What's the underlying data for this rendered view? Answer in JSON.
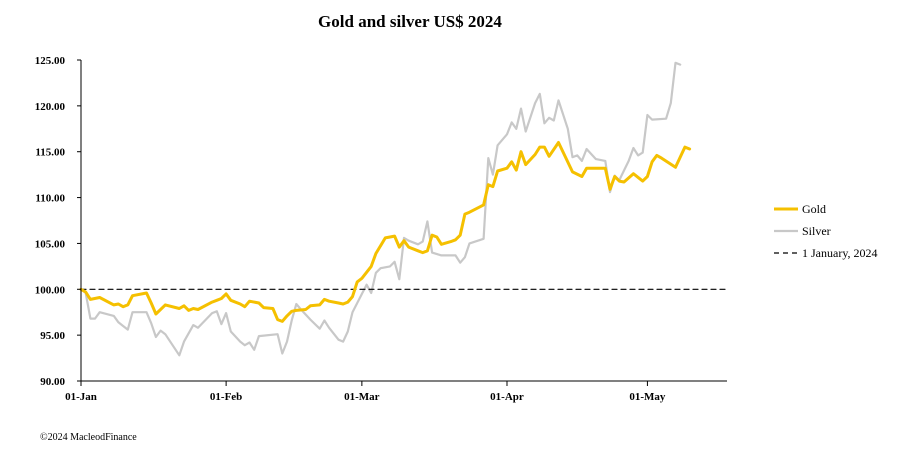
{
  "chart_data": {
    "type": "line",
    "title": "Gold and silver  US$ 2024",
    "xlabel": "",
    "ylabel": "",
    "ylim": [
      90,
      125
    ],
    "yticks": [
      "90.00",
      "95.00",
      "100.00",
      "105.00",
      "110.00",
      "115.00",
      "120.00",
      "125.00"
    ],
    "xticks": [
      "01-Jan",
      "01-Feb",
      "01-Mar",
      "01-Apr",
      "01-May"
    ],
    "xtick_days": [
      1,
      32,
      61,
      92,
      122
    ],
    "xlim_days": [
      1,
      139
    ],
    "legend_position": "right",
    "grid": false,
    "colors": {
      "gold": "#f5c000",
      "silver": "#c8c8c8",
      "reference": "#000000"
    },
    "series": [
      {
        "name": "Gold",
        "points": [
          [
            1,
            100.0
          ],
          [
            2,
            99.7
          ],
          [
            3,
            98.9
          ],
          [
            5,
            99.1
          ],
          [
            8,
            98.3
          ],
          [
            9,
            98.4
          ],
          [
            10,
            98.1
          ],
          [
            11,
            98.3
          ],
          [
            12,
            99.3
          ],
          [
            15,
            99.6
          ],
          [
            16,
            98.5
          ],
          [
            17,
            97.3
          ],
          [
            19,
            98.3
          ],
          [
            22,
            97.9
          ],
          [
            23,
            98.2
          ],
          [
            24,
            97.7
          ],
          [
            25,
            97.9
          ],
          [
            26,
            97.8
          ],
          [
            29,
            98.6
          ],
          [
            30,
            98.8
          ],
          [
            31,
            99.0
          ],
          [
            32,
            99.5
          ],
          [
            33,
            98.8
          ],
          [
            35,
            98.4
          ],
          [
            36,
            98.1
          ],
          [
            37,
            98.7
          ],
          [
            39,
            98.5
          ],
          [
            40,
            98.0
          ],
          [
            42,
            97.9
          ],
          [
            43,
            96.7
          ],
          [
            44,
            96.5
          ],
          [
            45,
            97.1
          ],
          [
            46,
            97.6
          ],
          [
            47,
            97.7
          ],
          [
            49,
            97.8
          ],
          [
            50,
            98.2
          ],
          [
            52,
            98.3
          ],
          [
            53,
            98.9
          ],
          [
            54,
            98.7
          ],
          [
            56,
            98.5
          ],
          [
            57,
            98.4
          ],
          [
            58,
            98.6
          ],
          [
            59,
            99.2
          ],
          [
            60,
            100.8
          ],
          [
            61,
            101.2
          ],
          [
            63,
            102.5
          ],
          [
            64,
            103.9
          ],
          [
            66,
            105.6
          ],
          [
            67,
            105.7
          ],
          [
            68,
            105.8
          ],
          [
            69,
            104.6
          ],
          [
            70,
            105.3
          ],
          [
            71,
            104.6
          ],
          [
            73,
            104.2
          ],
          [
            74,
            104.0
          ],
          [
            75,
            104.2
          ],
          [
            76,
            105.9
          ],
          [
            77,
            105.7
          ],
          [
            78,
            104.9
          ],
          [
            80,
            105.2
          ],
          [
            81,
            105.4
          ],
          [
            82,
            105.9
          ],
          [
            83,
            108.2
          ],
          [
            84,
            108.4
          ],
          [
            87,
            109.2
          ],
          [
            88,
            111.4
          ],
          [
            89,
            111.2
          ],
          [
            90,
            112.9
          ],
          [
            92,
            113.2
          ],
          [
            93,
            113.9
          ],
          [
            94,
            113.0
          ],
          [
            95,
            115.0
          ],
          [
            96,
            113.6
          ],
          [
            98,
            114.7
          ],
          [
            99,
            115.5
          ],
          [
            100,
            115.5
          ],
          [
            101,
            114.5
          ],
          [
            103,
            116.0
          ],
          [
            106,
            112.8
          ],
          [
            108,
            112.3
          ],
          [
            109,
            113.2
          ],
          [
            113,
            113.2
          ],
          [
            114,
            110.9
          ],
          [
            115,
            112.3
          ],
          [
            116,
            111.8
          ],
          [
            117,
            111.7
          ],
          [
            119,
            112.6
          ],
          [
            120,
            112.2
          ],
          [
            121,
            111.8
          ],
          [
            122,
            112.3
          ],
          [
            123,
            113.9
          ],
          [
            124,
            114.6
          ],
          [
            125,
            114.3
          ],
          [
            128,
            113.3
          ],
          [
            130,
            115.5
          ],
          [
            131,
            115.3
          ]
        ]
      },
      {
        "name": "Silver",
        "points": [
          [
            1,
            100.0
          ],
          [
            2,
            99.6
          ],
          [
            3,
            96.8
          ],
          [
            4,
            96.8
          ],
          [
            5,
            97.5
          ],
          [
            8,
            97.1
          ],
          [
            9,
            96.4
          ],
          [
            10,
            96.0
          ],
          [
            11,
            95.6
          ],
          [
            12,
            97.5
          ],
          [
            15,
            97.5
          ],
          [
            16,
            96.3
          ],
          [
            17,
            94.8
          ],
          [
            18,
            95.5
          ],
          [
            19,
            95.1
          ],
          [
            22,
            92.8
          ],
          [
            23,
            94.3
          ],
          [
            25,
            96.1
          ],
          [
            26,
            95.8
          ],
          [
            29,
            97.4
          ],
          [
            30,
            97.6
          ],
          [
            31,
            96.2
          ],
          [
            32,
            97.4
          ],
          [
            33,
            95.4
          ],
          [
            35,
            94.3
          ],
          [
            36,
            93.9
          ],
          [
            37,
            94.2
          ],
          [
            38,
            93.4
          ],
          [
            39,
            94.9
          ],
          [
            43,
            95.1
          ],
          [
            44,
            93.0
          ],
          [
            45,
            94.3
          ],
          [
            46,
            96.6
          ],
          [
            47,
            98.4
          ],
          [
            48,
            97.8
          ],
          [
            50,
            96.7
          ],
          [
            52,
            95.7
          ],
          [
            53,
            96.6
          ],
          [
            54,
            95.8
          ],
          [
            56,
            94.5
          ],
          [
            57,
            94.3
          ],
          [
            58,
            95.4
          ],
          [
            59,
            97.5
          ],
          [
            61,
            99.5
          ],
          [
            62,
            100.5
          ],
          [
            63,
            99.6
          ],
          [
            64,
            101.8
          ],
          [
            65,
            102.3
          ],
          [
            67,
            102.5
          ],
          [
            68,
            103.0
          ],
          [
            69,
            101.1
          ],
          [
            70,
            105.6
          ],
          [
            71,
            105.3
          ],
          [
            73,
            104.9
          ],
          [
            74,
            105.2
          ],
          [
            75,
            107.4
          ],
          [
            76,
            104.0
          ],
          [
            78,
            103.7
          ],
          [
            81,
            103.7
          ],
          [
            82,
            102.9
          ],
          [
            83,
            103.5
          ],
          [
            84,
            105.0
          ],
          [
            87,
            105.5
          ],
          [
            88,
            114.3
          ],
          [
            89,
            112.5
          ],
          [
            90,
            115.7
          ],
          [
            92,
            116.9
          ],
          [
            93,
            118.2
          ],
          [
            94,
            117.5
          ],
          [
            95,
            119.7
          ],
          [
            96,
            117.2
          ],
          [
            98,
            120.3
          ],
          [
            99,
            121.3
          ],
          [
            100,
            118.1
          ],
          [
            101,
            118.7
          ],
          [
            102,
            118.4
          ],
          [
            103,
            120.6
          ],
          [
            105,
            117.5
          ],
          [
            106,
            114.4
          ],
          [
            107,
            114.6
          ],
          [
            108,
            114.0
          ],
          [
            109,
            115.3
          ],
          [
            111,
            114.2
          ],
          [
            113,
            114.0
          ],
          [
            114,
            110.6
          ],
          [
            115,
            112.4
          ],
          [
            116,
            111.9
          ],
          [
            118,
            114.0
          ],
          [
            119,
            115.4
          ],
          [
            120,
            114.6
          ],
          [
            121,
            114.9
          ],
          [
            122,
            119.0
          ],
          [
            123,
            118.5
          ],
          [
            126,
            118.6
          ],
          [
            127,
            120.3
          ],
          [
            128,
            124.7
          ],
          [
            129,
            124.5
          ]
        ]
      },
      {
        "name": "1 January, 2024",
        "style": "dashed",
        "points": [
          [
            1,
            100.0
          ],
          [
            139,
            100.0
          ]
        ]
      }
    ]
  },
  "footer": {
    "copyright": "©2024 MacleodFinance"
  }
}
